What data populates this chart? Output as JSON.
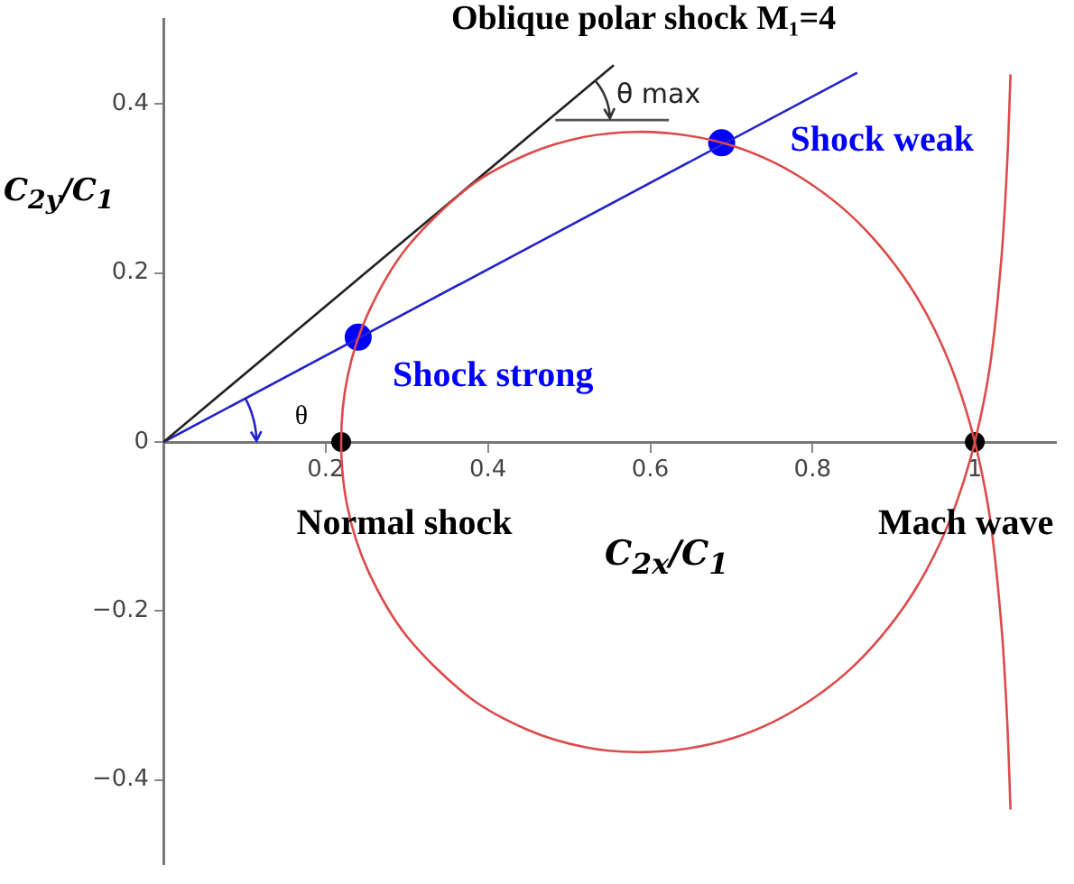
{
  "chart_data": {
    "type": "line",
    "title": "Oblique polar shock M₁=4",
    "xlabel": "C$_{2x}$/C$_{1}$",
    "ylabel": "C$_{2y}$/C$_{1}$",
    "xlim": [
      0,
      1.1
    ],
    "xticks": [
      0.2,
      0.4,
      0.6,
      0.8,
      1
    ],
    "ylim": [
      -0.5,
      0.5
    ],
    "yticks": [
      -0.4,
      -0.2,
      0,
      0.2,
      0.4
    ],
    "grid": false,
    "legend": false,
    "series": [
      {
        "type": "line",
        "color": "#dd4a4a",
        "marker": "none",
        "x": [
          1.044,
          1.04,
          1.033,
          1.019,
          1,
          0.977,
          0.95,
          0.919,
          0.883,
          0.844,
          0.8,
          0.752,
          0.7,
          0.644,
          0.583,
          0.519,
          0.45,
          0.377,
          0.3,
          0.252,
          0.227,
          0.219,
          0.227,
          0.252,
          0.3,
          0.377,
          0.45,
          0.519,
          0.583,
          0.644,
          0.7,
          0.752,
          0.8,
          0.844,
          0.883,
          0.919,
          0.95,
          0.977,
          1,
          1.019,
          1.033,
          1.04,
          1.044
        ],
        "values": [
          0.435,
          0.332,
          0.22,
          0.092,
          0,
          -0.073,
          -0.134,
          -0.186,
          -0.232,
          -0.271,
          -0.304,
          -0.331,
          -0.351,
          -0.363,
          -0.367,
          -0.361,
          -0.341,
          -0.302,
          -0.23,
          -0.152,
          -0.078,
          0,
          0.078,
          0.152,
          0.23,
          0.302,
          0.341,
          0.361,
          0.367,
          0.363,
          0.351,
          0.331,
          0.304,
          0.271,
          0.232,
          0.186,
          0.134,
          0.073,
          0,
          -0.092,
          -0.22,
          -0.332,
          -0.435
        ]
      },
      {
        "type": "line",
        "color": "#222222",
        "marker": "none",
        "x": [
          0,
          0.555
        ],
        "values": [
          0,
          0.446
        ]
      },
      {
        "type": "line",
        "color": "#555555",
        "marker": "none",
        "x": [
          0.483,
          0.623
        ],
        "values": [
          0.381,
          0.381
        ]
      },
      {
        "type": "line",
        "color": "#2222cc",
        "marker": "none",
        "x": [
          0,
          0.855
        ],
        "values": [
          0,
          0.437
        ]
      },
      {
        "type": "scatter",
        "color": "#0000ff",
        "marker": "circle",
        "x": [
          0.24,
          0.688
        ],
        "values": [
          0.124,
          0.354
        ]
      },
      {
        "type": "scatter",
        "color": "#000000",
        "marker": "circle",
        "x": [
          0.219,
          1
        ],
        "values": [
          0,
          0
        ]
      }
    ],
    "annotations": [
      {
        "text": "Shock weak",
        "x": 0.688,
        "y": 0.354
      },
      {
        "text": "Shock strong",
        "x": 0.24,
        "y": 0.124
      },
      {
        "text": "Normal shock",
        "x": 0.219,
        "y": 0
      },
      {
        "text": "Mach wave",
        "x": 1,
        "y": 0
      },
      "θ",
      "θ max"
    ]
  }
}
